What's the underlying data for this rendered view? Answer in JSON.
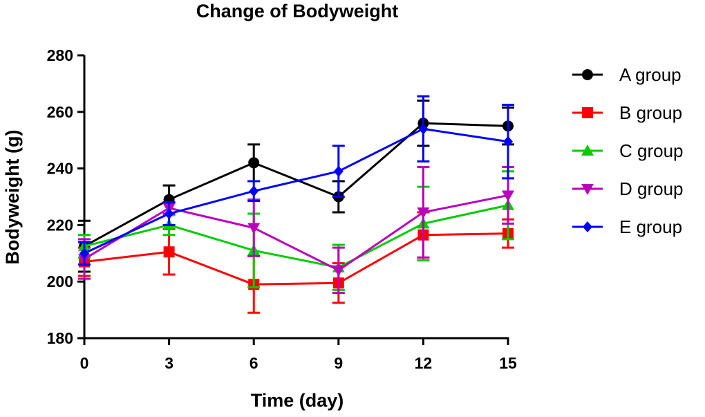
{
  "chart_data": {
    "type": "line",
    "title": "Change of Bodyweight",
    "xlabel": "Time (day)",
    "ylabel": "Bodyweight (g)",
    "x": [
      0,
      3,
      6,
      9,
      12,
      15
    ],
    "xticks": [
      "0",
      "3",
      "6",
      "9",
      "12",
      "15"
    ],
    "yticks": [
      "180",
      "200",
      "220",
      "240",
      "260",
      "280"
    ],
    "ylim": [
      180,
      280
    ],
    "xlim": [
      0,
      15
    ],
    "legend_position": "right",
    "series": [
      {
        "name": "A group",
        "color": "#000000",
        "marker": "circle",
        "values": [
          212.5,
          229,
          242,
          230,
          256,
          255
        ],
        "errors": [
          9,
          5,
          6.5,
          5.5,
          8,
          6.5
        ]
      },
      {
        "name": "B group",
        "color": "#ff0000",
        "marker": "square",
        "values": [
          207,
          210.5,
          199,
          199.5,
          216.5,
          217
        ],
        "errors": [
          5,
          8,
          10,
          7,
          8,
          5
        ]
      },
      {
        "name": "C group",
        "color": "#00cc00",
        "marker": "triangle-up",
        "values": [
          212.5,
          220,
          211,
          205,
          220.5,
          227
        ],
        "errors": [
          4,
          3.5,
          13,
          8,
          13,
          12
        ]
      },
      {
        "name": "D group",
        "color": "#bb00bb",
        "marker": "triangle-down",
        "values": [
          208,
          226,
          219,
          204,
          224.5,
          230.5
        ],
        "errors": [
          7,
          2,
          10,
          8,
          16,
          10
        ]
      },
      {
        "name": "E group",
        "color": "#0000ff",
        "marker": "diamond",
        "values": [
          210,
          224,
          232,
          239,
          254,
          249.5
        ],
        "errors": [
          4,
          4,
          3.5,
          9,
          11.5,
          13
        ]
      }
    ]
  }
}
